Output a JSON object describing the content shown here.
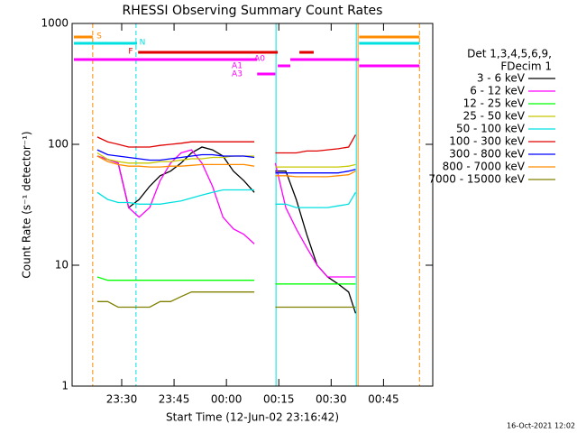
{
  "chart_data": {
    "type": "line",
    "title": "RHESSI Observing Summary Count Rates",
    "xlabel": "Start Time (12-Jun-02 23:16:42)",
    "ylabel": "Count Rate (s⁻¹ detector⁻¹)",
    "legend_title": [
      "Det 1,3,4,5,6,9,",
      "FDecim 1"
    ],
    "footer": "16-Oct-2021 12:02",
    "log_y": true,
    "xlim": [
      15.8,
      119.1
    ],
    "ylim": [
      1,
      1000
    ],
    "yticks": [
      1,
      10,
      100,
      1000
    ],
    "xticks": [
      {
        "value": 30,
        "label": "23:30"
      },
      {
        "value": 45,
        "label": "23:45"
      },
      {
        "value": 60,
        "label": "00:00"
      },
      {
        "value": 75,
        "label": "00:15"
      },
      {
        "value": 90,
        "label": "00:30"
      },
      {
        "value": 105,
        "label": "00:45"
      }
    ],
    "x": [
      23,
      26,
      29,
      32,
      35,
      38,
      41,
      44,
      47,
      50,
      53,
      56,
      59,
      62,
      65,
      68,
      71,
      74,
      77,
      80,
      83,
      86,
      89,
      92,
      95,
      97
    ],
    "series": [
      {
        "name": "3 - 6 keV",
        "color": "#000000",
        "values": [
          80,
          75,
          70,
          30,
          35,
          45,
          55,
          60,
          70,
          85,
          95,
          90,
          80,
          60,
          50,
          40,
          null,
          60,
          60,
          35,
          18,
          10,
          8,
          7,
          6,
          4
        ]
      },
      {
        "name": "6 - 12 keV",
        "color": "#ff00ff",
        "values": [
          80,
          75,
          70,
          30,
          25,
          30,
          50,
          70,
          85,
          90,
          70,
          45,
          25,
          20,
          18,
          15,
          null,
          70,
          30,
          20,
          14,
          10,
          8,
          8,
          8,
          8
        ]
      },
      {
        "name": "12 - 25 keV",
        "color": "#00ff00",
        "values": [
          8,
          7.5,
          7.5,
          7.5,
          7.5,
          7.5,
          7.5,
          7.5,
          7.5,
          7.5,
          7.5,
          7.5,
          7.5,
          7.5,
          7.5,
          7.5,
          null,
          7,
          7,
          7,
          7,
          7,
          7,
          7,
          7,
          7
        ]
      },
      {
        "name": "25 - 50 keV",
        "color": "#c8c800",
        "values": [
          85,
          75,
          72,
          70,
          70,
          70,
          72,
          72,
          74,
          76,
          76,
          78,
          78,
          80,
          80,
          80,
          null,
          65,
          65,
          65,
          65,
          65,
          65,
          65,
          66,
          68
        ]
      },
      {
        "name": "50 - 100 keV",
        "color": "#00e0e0",
        "values": [
          40,
          35,
          33,
          33,
          32,
          32,
          32,
          33,
          34,
          36,
          38,
          40,
          42,
          42,
          42,
          42,
          null,
          32,
          32,
          30,
          30,
          30,
          30,
          31,
          32,
          40
        ]
      },
      {
        "name": "100 - 300 keV",
        "color": "#e00000",
        "values": [
          115,
          105,
          100,
          95,
          95,
          95,
          98,
          100,
          102,
          105,
          105,
          105,
          105,
          105,
          105,
          105,
          null,
          85,
          85,
          85,
          88,
          88,
          90,
          92,
          95,
          120
        ]
      },
      {
        "name": "300 - 800 keV",
        "color": "#0000ff",
        "values": [
          90,
          82,
          80,
          78,
          76,
          74,
          74,
          76,
          78,
          80,
          82,
          82,
          80,
          80,
          80,
          78,
          null,
          58,
          58,
          58,
          58,
          58,
          58,
          58,
          60,
          62
        ]
      },
      {
        "name": "800 - 7000 keV",
        "color": "#ff8c00",
        "values": [
          80,
          72,
          68,
          66,
          66,
          65,
          65,
          66,
          66,
          67,
          68,
          68,
          68,
          68,
          68,
          66,
          null,
          55,
          55,
          54,
          54,
          54,
          54,
          55,
          56,
          60
        ]
      },
      {
        "name": "7000 - 15000 keV",
        "color": "#808000",
        "values": [
          5,
          5,
          4.5,
          4.5,
          4.5,
          4.5,
          5,
          5,
          5.5,
          6,
          6,
          6,
          6,
          6,
          6,
          6,
          null,
          4.5,
          4.5,
          4.5,
          4.5,
          4.5,
          4.5,
          4.5,
          4.5,
          4.5
        ]
      }
    ],
    "flags": [
      {
        "name": "S",
        "color": "#ff8c00",
        "ranges": [
          [
            16.3,
            21.7
          ],
          [
            98,
            115.3
          ]
        ]
      },
      {
        "name": "N",
        "color": "#00e0e0",
        "ranges": [
          [
            16.3,
            34.4
          ],
          [
            98,
            115.3
          ]
        ]
      },
      {
        "name": "F",
        "color": "#e00000",
        "ranges": [
          [
            34.7,
            74.7
          ],
          [
            80.9,
            85
          ]
        ]
      },
      {
        "name": "A0",
        "color": "#ff00ff",
        "ranges": [
          [
            16.3,
            68.8
          ],
          [
            78.3,
            98
          ]
        ]
      },
      {
        "name": "A1",
        "color": "#ff00ff",
        "ranges": [
          [
            74.7,
            78.3
          ],
          [
            98,
            115.3
          ]
        ]
      },
      {
        "name": "A3",
        "color": "#ff00ff",
        "ranges": [
          [
            68.8,
            74
          ]
        ]
      }
    ],
    "markers": [
      {
        "x": 21.7,
        "color": "#ff8c00",
        "dashed": true
      },
      {
        "x": 34.1,
        "color": "#00e0e0",
        "dashed": true
      },
      {
        "x": 74.2,
        "color": "#00e0e0",
        "dashed": false
      },
      {
        "x": 97.2,
        "color": "#00e0e0",
        "dashed": false
      },
      {
        "x": 97.7,
        "color": "#ff8c00",
        "dashed": false
      },
      {
        "x": 115.3,
        "color": "#ff8c00",
        "dashed": true
      }
    ]
  }
}
